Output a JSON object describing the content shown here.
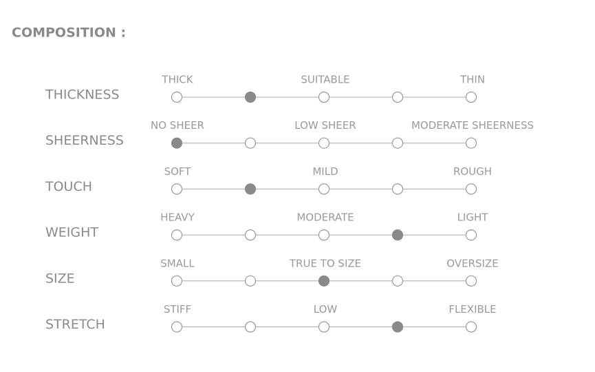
{
  "title": "COMPOSITION :",
  "rows": [
    {
      "label": "THICKNESS",
      "scale": [
        "THICK",
        "SUITABLE",
        "THIN"
      ],
      "selected": 1
    },
    {
      "label": "SHEERNESS",
      "scale": [
        "NO SHEER",
        "LOW SHEER",
        "MODERATE SHEERNESS"
      ],
      "selected": 0
    },
    {
      "label": "TOUCH",
      "scale": [
        "SOFT",
        "MILD",
        "ROUGH"
      ],
      "selected": 1
    },
    {
      "label": "WEIGHT",
      "scale": [
        "HEAVY",
        "MODERATE",
        "LIGHT"
      ],
      "selected": 3
    },
    {
      "label": "SIZE",
      "scale": [
        "SMALL",
        "TRUE TO SIZE",
        "OVERSIZE"
      ],
      "selected": 2
    },
    {
      "label": "STRETCH",
      "scale": [
        "STIFF",
        "LOW",
        "FLEXIBLE"
      ],
      "selected": 3
    }
  ]
}
